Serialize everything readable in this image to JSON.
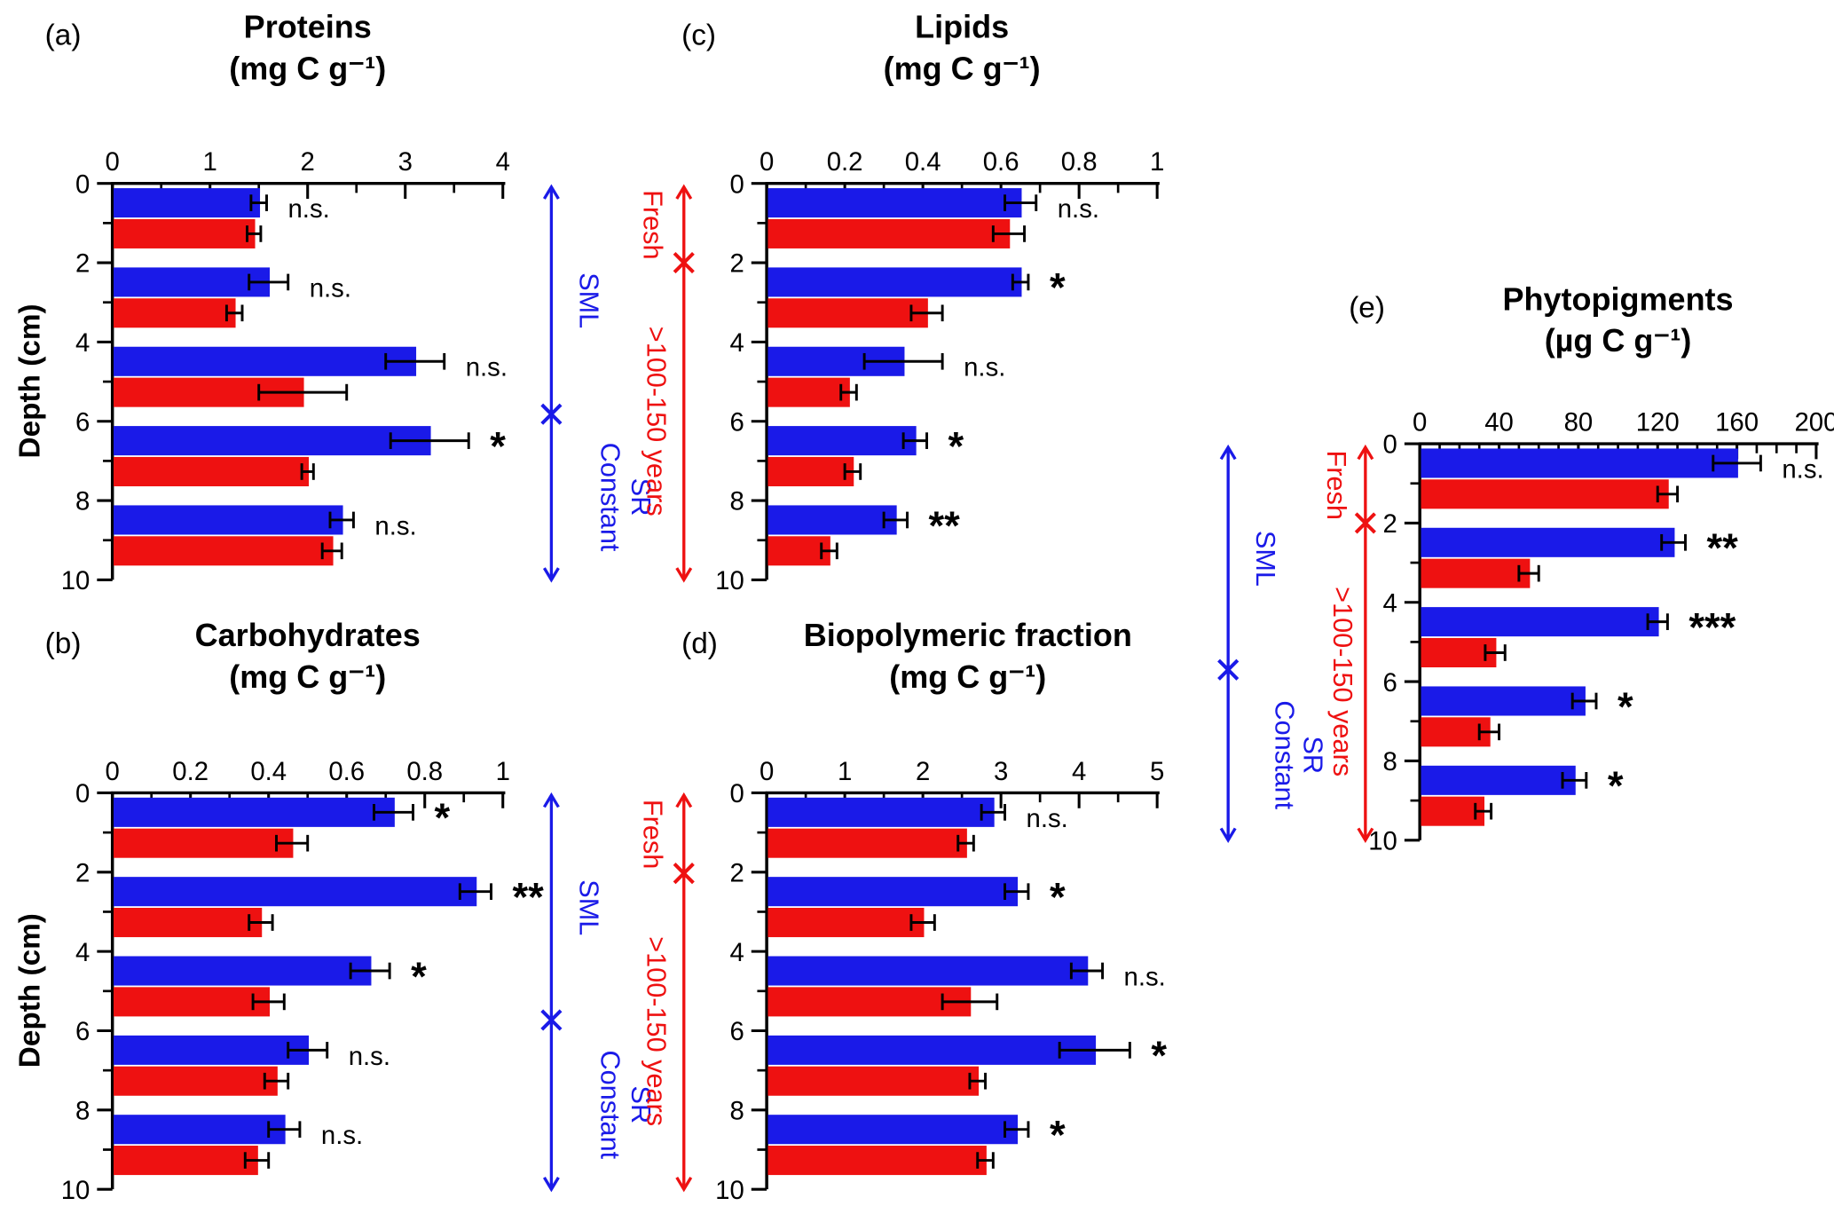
{
  "figure": {
    "colors": {
      "blue": "#1a1ae8",
      "red": "#ee1111",
      "axis": "#000000"
    }
  },
  "annotations": {
    "sml": "SML",
    "constant": "Constant",
    "sr": "SR",
    "fresh": "Fresh",
    "age": ">100-150 years"
  },
  "chart_data": [
    {
      "id": "a",
      "panel_label": "(a)",
      "type": "bar",
      "orientation": "horizontal",
      "title": "Proteins",
      "units": "(mg C g⁻¹)",
      "ylabel": "Depth (cm)",
      "xlim": [
        0,
        4
      ],
      "xminor": 0.5,
      "xticks": [
        {
          "v": 0,
          "label": "0"
        },
        {
          "v": 1,
          "label": "1"
        },
        {
          "v": 2,
          "label": "2"
        },
        {
          "v": 3,
          "label": "3"
        },
        {
          "v": 4,
          "label": "4"
        }
      ],
      "ylim": [
        0,
        10
      ],
      "yticks": [
        0,
        2,
        4,
        6,
        8,
        10
      ],
      "depths": [
        0,
        2,
        4,
        6,
        8
      ],
      "series": [
        {
          "name": "blue-bars",
          "color": "blue",
          "values": [
            1.5,
            1.6,
            3.1,
            3.25,
            2.35
          ],
          "errors": [
            0.08,
            0.2,
            0.3,
            0.4,
            0.12
          ]
        },
        {
          "name": "red-bars",
          "color": "red",
          "values": [
            1.45,
            1.25,
            1.95,
            2.0,
            2.25
          ],
          "errors": [
            0.07,
            0.08,
            0.45,
            0.06,
            0.1
          ]
        }
      ],
      "significance": [
        "n.s.",
        "n.s.",
        "n.s.",
        "*",
        "n.s."
      ]
    },
    {
      "id": "b",
      "panel_label": "(b)",
      "type": "bar",
      "orientation": "horizontal",
      "title": "Carbohydrates",
      "units": "(mg C g⁻¹)",
      "ylabel": "Depth (cm)",
      "xlim": [
        0,
        1
      ],
      "xminor": 0.1,
      "xticks": [
        {
          "v": 0,
          "label": "0"
        },
        {
          "v": 0.2,
          "label": "0.2"
        },
        {
          "v": 0.4,
          "label": "0.4"
        },
        {
          "v": 0.6,
          "label": "0.6"
        },
        {
          "v": 0.8,
          "label": "0.8"
        },
        {
          "v": 1,
          "label": "1"
        }
      ],
      "ylim": [
        0,
        10
      ],
      "yticks": [
        0,
        2,
        4,
        6,
        8,
        10
      ],
      "depths": [
        0,
        2,
        4,
        6,
        8
      ],
      "series": [
        {
          "name": "blue-bars",
          "color": "blue",
          "values": [
            0.72,
            0.93,
            0.66,
            0.5,
            0.44
          ],
          "errors": [
            0.05,
            0.04,
            0.05,
            0.05,
            0.04
          ]
        },
        {
          "name": "red-bars",
          "color": "red",
          "values": [
            0.46,
            0.38,
            0.4,
            0.42,
            0.37
          ],
          "errors": [
            0.04,
            0.03,
            0.04,
            0.03,
            0.03
          ]
        }
      ],
      "significance": [
        "*",
        "**",
        "*",
        "n.s.",
        "n.s."
      ]
    },
    {
      "id": "c",
      "panel_label": "(c)",
      "type": "bar",
      "orientation": "horizontal",
      "title": "Lipids",
      "units": "(mg C g⁻¹)",
      "ylabel": "Depth (cm)",
      "xlim": [
        0,
        1
      ],
      "xminor": 0.1,
      "xticks": [
        {
          "v": 0,
          "label": "0"
        },
        {
          "v": 0.2,
          "label": "0.2"
        },
        {
          "v": 0.4,
          "label": "0.4"
        },
        {
          "v": 0.6,
          "label": "0.6"
        },
        {
          "v": 0.8,
          "label": "0.8"
        },
        {
          "v": 1,
          "label": "1"
        }
      ],
      "ylim": [
        0,
        10
      ],
      "yticks": [
        0,
        2,
        4,
        6,
        8,
        10
      ],
      "depths": [
        0,
        2,
        4,
        6,
        8
      ],
      "series": [
        {
          "name": "blue-bars",
          "color": "blue",
          "values": [
            0.65,
            0.65,
            0.35,
            0.38,
            0.33
          ],
          "errors": [
            0.04,
            0.02,
            0.1,
            0.03,
            0.03
          ]
        },
        {
          "name": "red-bars",
          "color": "red",
          "values": [
            0.62,
            0.41,
            0.21,
            0.22,
            0.16
          ],
          "errors": [
            0.04,
            0.04,
            0.02,
            0.02,
            0.02
          ]
        }
      ],
      "significance": [
        "n.s.",
        "*",
        "n.s.",
        "*",
        "**"
      ]
    },
    {
      "id": "d",
      "panel_label": "(d)",
      "type": "bar",
      "orientation": "horizontal",
      "title": "Biopolymeric fraction",
      "units": "(mg C g⁻¹)",
      "ylabel": "Depth (cm)",
      "xlim": [
        0,
        5
      ],
      "xminor": 0.5,
      "xticks": [
        {
          "v": 0,
          "label": "0"
        },
        {
          "v": 1,
          "label": "1"
        },
        {
          "v": 2,
          "label": "2"
        },
        {
          "v": 3,
          "label": "3"
        },
        {
          "v": 4,
          "label": "4"
        },
        {
          "v": 5,
          "label": "5"
        }
      ],
      "ylim": [
        0,
        10
      ],
      "yticks": [
        0,
        2,
        4,
        6,
        8,
        10
      ],
      "depths": [
        0,
        2,
        4,
        6,
        8
      ],
      "series": [
        {
          "name": "blue-bars",
          "color": "blue",
          "values": [
            2.9,
            3.2,
            4.1,
            4.2,
            3.2
          ],
          "errors": [
            0.15,
            0.15,
            0.2,
            0.45,
            0.15
          ]
        },
        {
          "name": "red-bars",
          "color": "red",
          "values": [
            2.55,
            2.0,
            2.6,
            2.7,
            2.8
          ],
          "errors": [
            0.1,
            0.15,
            0.35,
            0.1,
            0.1
          ]
        }
      ],
      "significance": [
        "n.s.",
        "*",
        "n.s.",
        "*",
        "*"
      ]
    },
    {
      "id": "e",
      "panel_label": "(e)",
      "type": "bar",
      "orientation": "horizontal",
      "title": "Phytopigments",
      "units": "(µg C g⁻¹)",
      "ylabel": "Depth (cm)",
      "xlim": [
        0,
        200
      ],
      "xminor": 10,
      "xticks": [
        {
          "v": 0,
          "label": "0"
        },
        {
          "v": 40,
          "label": "40"
        },
        {
          "v": 80,
          "label": "80"
        },
        {
          "v": 120,
          "label": "120"
        },
        {
          "v": 160,
          "label": "160"
        },
        {
          "v": 200,
          "label": "200"
        }
      ],
      "ylim": [
        0,
        10
      ],
      "yticks": [
        0,
        2,
        4,
        6,
        8,
        10
      ],
      "depths": [
        0,
        2,
        4,
        6,
        8
      ],
      "series": [
        {
          "name": "blue-bars",
          "color": "blue",
          "values": [
            160,
            128,
            120,
            83,
            78
          ],
          "errors": [
            12,
            6,
            5,
            6,
            6
          ]
        },
        {
          "name": "red-bars",
          "color": "red",
          "values": [
            125,
            55,
            38,
            35,
            32
          ],
          "errors": [
            5,
            5,
            5,
            5,
            4
          ]
        }
      ],
      "significance": [
        "n.s.",
        "**",
        "***",
        "*",
        "*"
      ]
    }
  ]
}
